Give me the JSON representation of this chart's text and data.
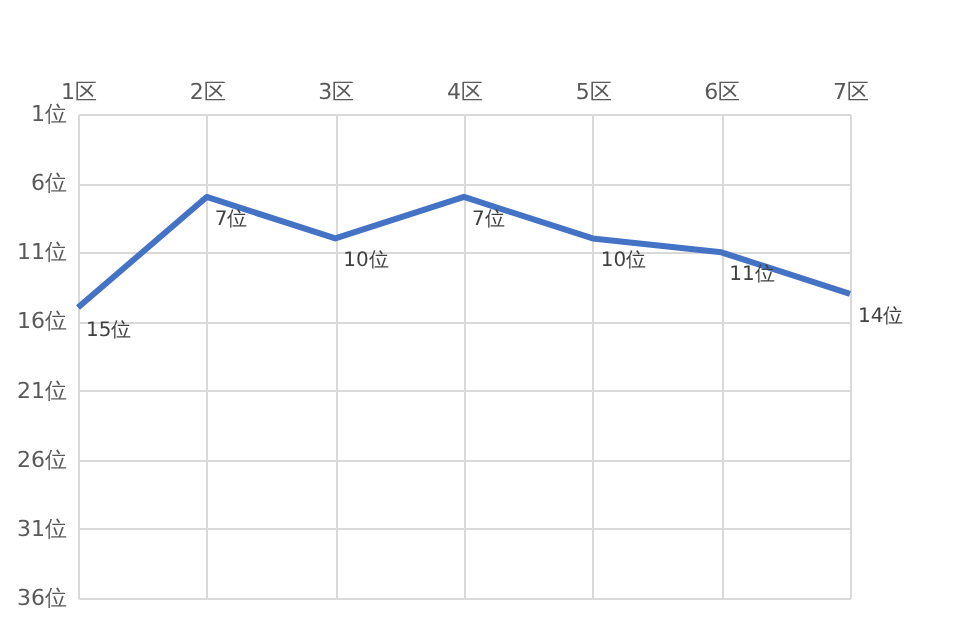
{
  "chart_data": {
    "type": "line",
    "categories": [
      "1区",
      "2区",
      "3区",
      "4区",
      "5区",
      "6区",
      "7区"
    ],
    "series": [
      {
        "color": "#4472c4",
        "values": [
          15,
          7,
          10,
          7,
          10,
          11,
          14
        ],
        "value_labels": [
          "15位",
          "7位",
          "10位",
          "7位",
          "10位",
          "11位",
          "14位"
        ]
      }
    ],
    "ylim": [
      36,
      1
    ],
    "yticks": [
      {
        "value": 1,
        "label": "1位"
      },
      {
        "value": 6,
        "label": "6位"
      },
      {
        "value": 11,
        "label": "11位"
      },
      {
        "value": 16,
        "label": "16位"
      },
      {
        "value": 21,
        "label": "21位"
      },
      {
        "value": 26,
        "label": "26位"
      },
      {
        "value": 31,
        "label": "31位"
      },
      {
        "value": 36,
        "label": "36位"
      }
    ],
    "grid": true,
    "marker": "none",
    "line_style": "solid"
  }
}
